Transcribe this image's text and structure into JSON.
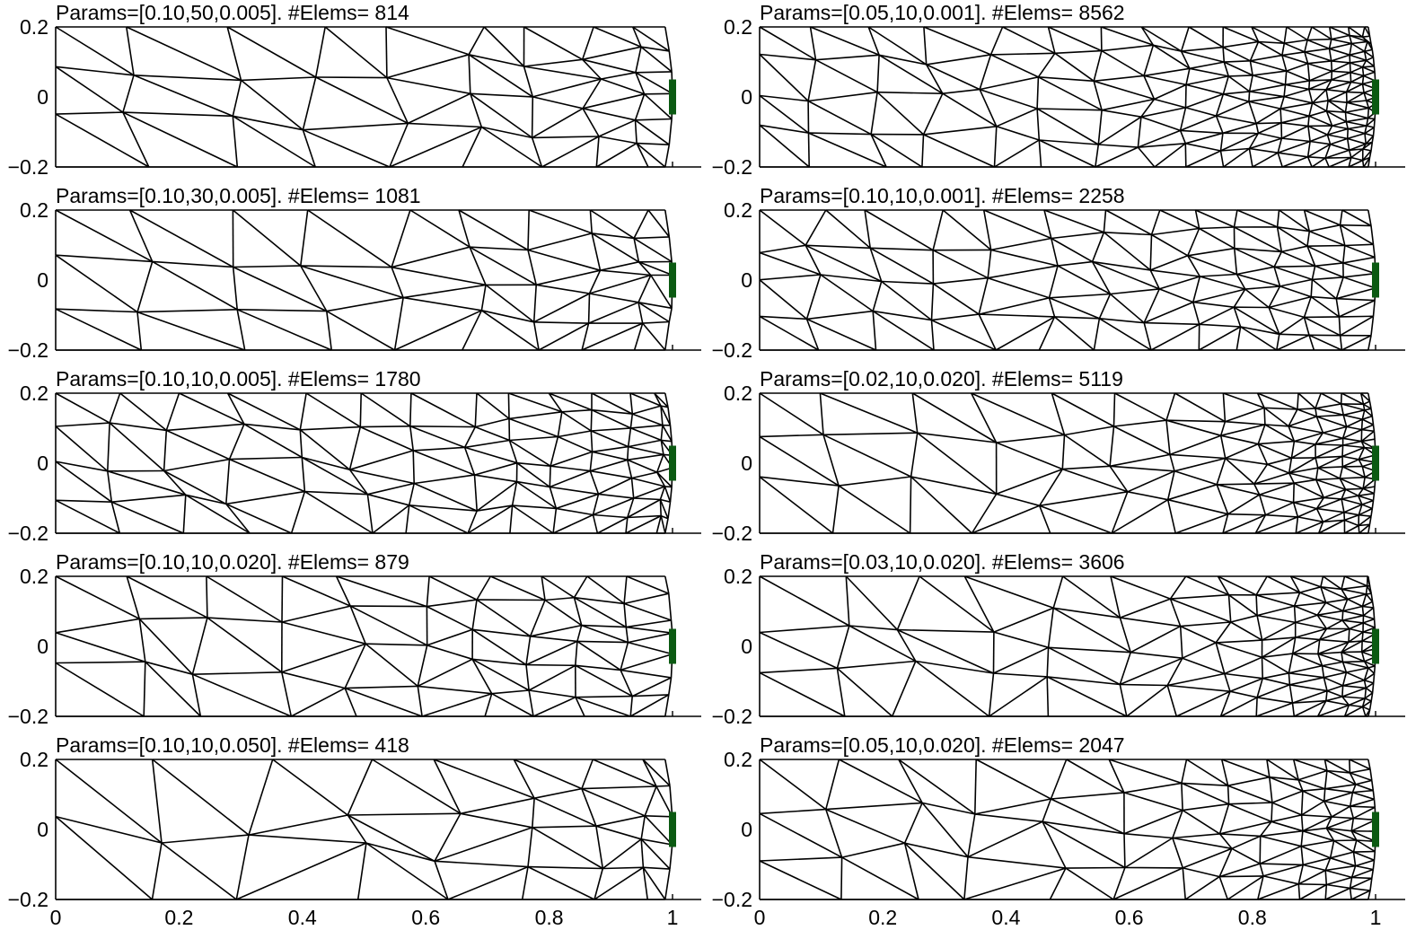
{
  "x_ticks": [
    "0",
    "0.2",
    "0.4",
    "0.6",
    "0.8",
    "1"
  ],
  "y_ticks": [
    "0.2",
    "0",
    "−0.2"
  ],
  "electrode_color": "#0b5a12",
  "mesh_color": "#000000",
  "panels": [
    {
      "id": "p1",
      "title": "Params=[0.10,50,0.005]. #Elems= 814",
      "h_min": 0.1,
      "ratio": 50,
      "param3": 0.005,
      "elems": 814,
      "show_x_ticks": false
    },
    {
      "id": "p2",
      "title": "Params=[0.05,10,0.001]. #Elems= 8562",
      "h_min": 0.05,
      "ratio": 10,
      "param3": 0.001,
      "elems": 8562,
      "show_x_ticks": false
    },
    {
      "id": "p3",
      "title": "Params=[0.10,30,0.005]. #Elems= 1081",
      "h_min": 0.1,
      "ratio": 30,
      "param3": 0.005,
      "elems": 1081,
      "show_x_ticks": false
    },
    {
      "id": "p4",
      "title": "Params=[0.10,10,0.001]. #Elems= 2258",
      "h_min": 0.1,
      "ratio": 10,
      "param3": 0.001,
      "elems": 2258,
      "show_x_ticks": false
    },
    {
      "id": "p5",
      "title": "Params=[0.10,10,0.005]. #Elems= 1780",
      "h_min": 0.1,
      "ratio": 10,
      "param3": 0.005,
      "elems": 1780,
      "show_x_ticks": false
    },
    {
      "id": "p6",
      "title": "Params=[0.02,10,0.020]. #Elems= 5119",
      "h_min": 0.02,
      "ratio": 10,
      "param3": 0.02,
      "elems": 5119,
      "show_x_ticks": false
    },
    {
      "id": "p7",
      "title": "Params=[0.10,10,0.020]. #Elems= 879",
      "h_min": 0.1,
      "ratio": 10,
      "param3": 0.02,
      "elems": 879,
      "show_x_ticks": false
    },
    {
      "id": "p8",
      "title": "Params=[0.03,10,0.020]. #Elems= 3606",
      "h_min": 0.03,
      "ratio": 10,
      "param3": 0.02,
      "elems": 3606,
      "show_x_ticks": false
    },
    {
      "id": "p9",
      "title": "Params=[0.10,10,0.050]. #Elems= 418",
      "h_min": 0.1,
      "ratio": 10,
      "param3": 0.05,
      "elems": 418,
      "show_x_ticks": true
    },
    {
      "id": "p10",
      "title": "Params=[0.05,10,0.020]. #Elems= 2047",
      "h_min": 0.05,
      "ratio": 10,
      "param3": 0.02,
      "elems": 2047,
      "show_x_ticks": true
    }
  ]
}
